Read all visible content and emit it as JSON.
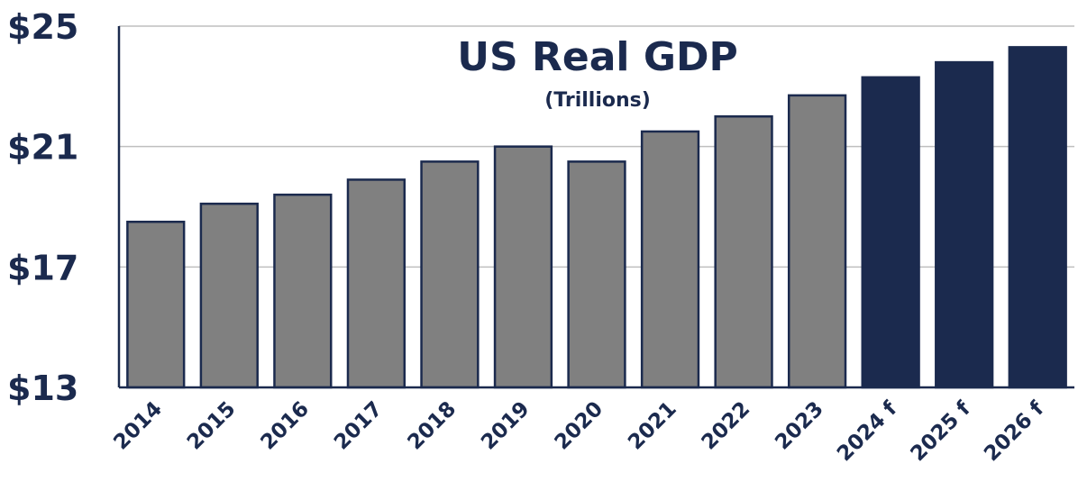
{
  "chart_data": {
    "type": "bar",
    "title": "US Real GDP",
    "subtitle": "(Trillions)",
    "categories": [
      "2014",
      "2015",
      "2016",
      "2017",
      "2018",
      "2019",
      "2020",
      "2021",
      "2022",
      "2023",
      "2024 f",
      "2025 f",
      "2026 f"
    ],
    "values": [
      18.5,
      19.1,
      19.4,
      19.9,
      20.5,
      21.0,
      20.5,
      21.5,
      22.0,
      22.7,
      23.3,
      23.8,
      24.3
    ],
    "forecast": [
      false,
      false,
      false,
      false,
      false,
      false,
      false,
      false,
      false,
      false,
      true,
      true,
      true
    ],
    "ylim": [
      13,
      25
    ],
    "yticks": [
      13,
      17,
      21,
      25
    ],
    "ytick_labels": [
      "$13",
      "$17",
      "$21",
      "$25"
    ],
    "xlabel": "",
    "ylabel": "",
    "grid": true,
    "colors": {
      "actual": "#808080",
      "forecast": "#1b2a4e",
      "bar_outline": "#1b2a4e",
      "grid": "#bfbfbf",
      "text": "#1b2a4e"
    }
  }
}
